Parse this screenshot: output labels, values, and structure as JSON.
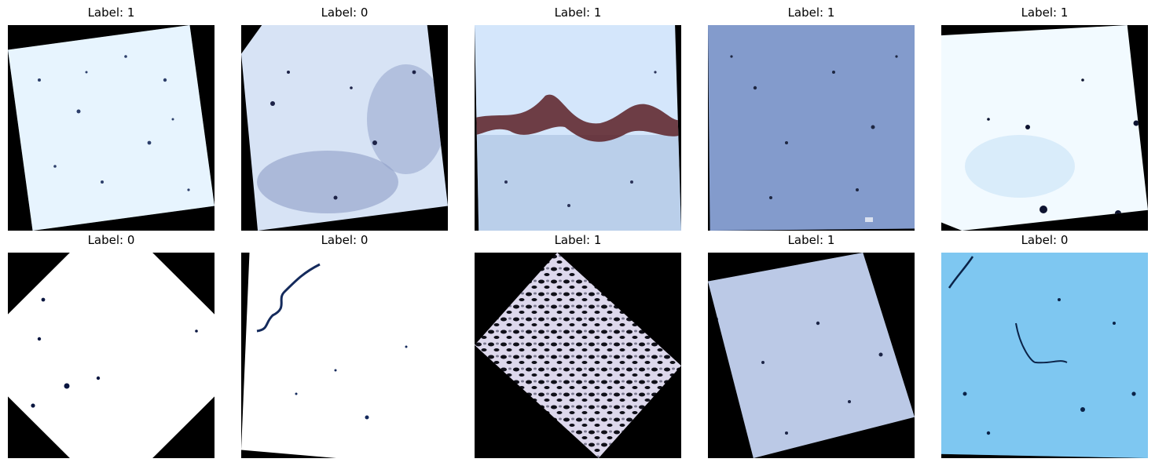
{
  "figure": {
    "panels": [
      {
        "title": "Label: 1",
        "surface_colors": [
          "#eef8ff",
          "#dbeefb",
          "#2d3f6b"
        ],
        "image_subject": "pale crack-surface texture, rotated"
      },
      {
        "title": "Label: 0",
        "surface_colors": [
          "#d7e3f5",
          "#8d9dc7",
          "#1d2347"
        ],
        "image_subject": "blue-grey concrete texture, rotated"
      },
      {
        "title": "Label: 1",
        "surface_colors": [
          "#d4e6fb",
          "#9fb7d9",
          "#5a1f25"
        ],
        "image_subject": "textured surface with brown diagonal crack, rotated"
      },
      {
        "title": "Label: 1",
        "surface_colors": [
          "#8fa8d8",
          "#6d84b8",
          "#1e2742"
        ],
        "image_subject": "blue surface texture, slightly rotated"
      },
      {
        "title": "Label: 1",
        "surface_colors": [
          "#f2faff",
          "#cfe6f8",
          "#0d1330"
        ],
        "image_subject": "pale surface with dark spots, rotated"
      },
      {
        "title": "Label: 0",
        "surface_colors": [
          "#ffffff",
          "#e8f4ff",
          "#0a1640"
        ],
        "image_subject": "white octagonal-cropped surface with small dark spots"
      },
      {
        "title": "Label: 0",
        "surface_colors": [
          "#ffffff",
          "#e3f2ff",
          "#142a5c"
        ],
        "image_subject": "white surface with thin dark crack at top-left, rotated"
      },
      {
        "title": "Label: 1",
        "surface_colors": [
          "#ddd8ec",
          "#7a7890",
          "#0f0f18"
        ],
        "image_subject": "high-contrast pebbled texture, rotated 45 degrees"
      },
      {
        "title": "Label: 1",
        "surface_colors": [
          "#cfdcf2",
          "#8f9fca",
          "#1c2546"
        ],
        "image_subject": "blue-grey speckled surface, rotated"
      },
      {
        "title": "Label: 0",
        "surface_colors": [
          "#8fd0f5",
          "#5fb6ea",
          "#0b2348"
        ],
        "image_subject": "cyan-blue surface with dark thin cracks, slightly rotated"
      }
    ]
  }
}
